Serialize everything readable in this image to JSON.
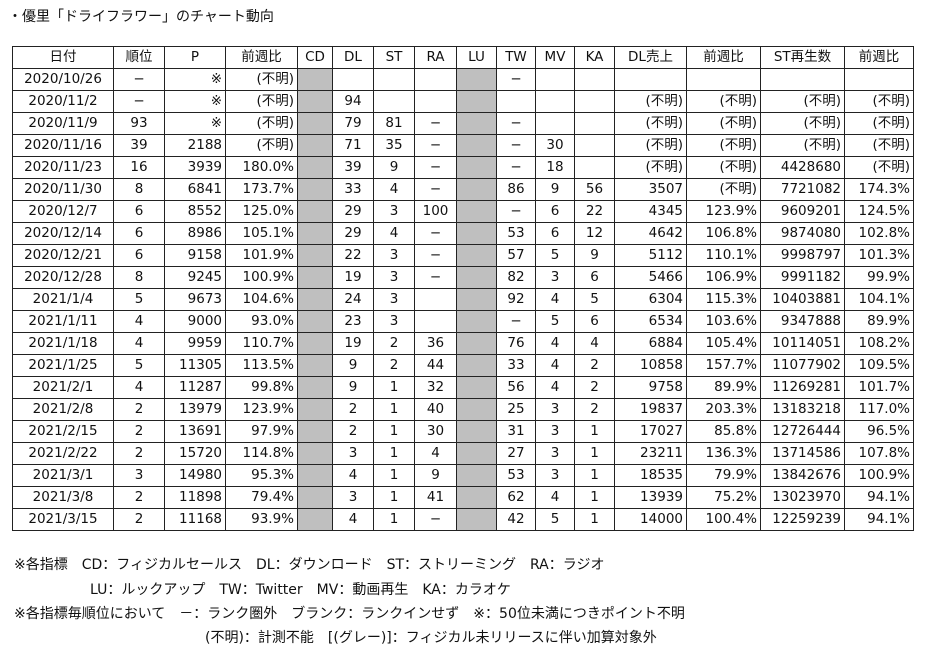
{
  "title": "・優里「ドライフラワー」のチャート動向",
  "table": {
    "header": [
      "日付",
      "順位",
      "P",
      "前週比",
      "CD",
      "DL",
      "ST",
      "RA",
      "LU",
      "TW",
      "MV",
      "KA",
      "DL売上",
      "前週比",
      "ST再生数",
      "前週比"
    ],
    "rows": [
      [
        "2020/10/26",
        "−",
        "※",
        "(不明)",
        null,
        null,
        null,
        null,
        null,
        "−",
        null,
        null,
        null,
        null,
        null,
        null
      ],
      [
        "2020/11/2",
        "−",
        "※",
        "(不明)",
        null,
        94,
        null,
        null,
        null,
        null,
        null,
        null,
        "(不明)",
        "(不明)",
        "(不明)",
        "(不明)"
      ],
      [
        "2020/11/9",
        93,
        "※",
        "(不明)",
        null,
        79,
        81,
        "−",
        null,
        "−",
        null,
        null,
        "(不明)",
        "(不明)",
        "(不明)",
        "(不明)"
      ],
      [
        "2020/11/16",
        39,
        2188,
        "(不明)",
        null,
        71,
        35,
        "−",
        null,
        "−",
        30,
        null,
        "(不明)",
        "(不明)",
        "(不明)",
        "(不明)"
      ],
      [
        "2020/11/23",
        16,
        3939,
        "180.0%",
        null,
        39,
        9,
        "−",
        null,
        "−",
        18,
        null,
        "(不明)",
        "(不明)",
        4428680,
        "(不明)"
      ],
      [
        "2020/11/30",
        8,
        6841,
        "173.7%",
        null,
        33,
        4,
        "−",
        null,
        86,
        9,
        56,
        3507,
        "(不明)",
        7721082,
        "174.3%"
      ],
      [
        "2020/12/7",
        6,
        8552,
        "125.0%",
        null,
        29,
        3,
        100,
        null,
        "−",
        6,
        22,
        4345,
        "123.9%",
        9609201,
        "124.5%"
      ],
      [
        "2020/12/14",
        6,
        8986,
        "105.1%",
        null,
        29,
        4,
        "−",
        null,
        53,
        6,
        12,
        4642,
        "106.8%",
        9874080,
        "102.8%"
      ],
      [
        "2020/12/21",
        6,
        9158,
        "101.9%",
        null,
        22,
        3,
        "−",
        null,
        57,
        5,
        9,
        5112,
        "110.1%",
        9998797,
        "101.3%"
      ],
      [
        "2020/12/28",
        8,
        9245,
        "100.9%",
        null,
        19,
        3,
        "−",
        null,
        82,
        3,
        6,
        5466,
        "106.9%",
        9991182,
        "99.9%"
      ],
      [
        "2021/1/4",
        5,
        9673,
        "104.6%",
        null,
        24,
        3,
        null,
        null,
        92,
        4,
        5,
        6304,
        "115.3%",
        10403881,
        "104.1%"
      ],
      [
        "2021/1/11",
        4,
        9000,
        "93.0%",
        null,
        23,
        3,
        null,
        null,
        "−",
        5,
        6,
        6534,
        "103.6%",
        9347888,
        "89.9%"
      ],
      [
        "2021/1/18",
        4,
        9959,
        "110.7%",
        null,
        19,
        2,
        36,
        null,
        76,
        4,
        4,
        6884,
        "105.4%",
        10114051,
        "108.2%"
      ],
      [
        "2021/1/25",
        5,
        11305,
        "113.5%",
        null,
        9,
        2,
        44,
        null,
        33,
        4,
        2,
        10858,
        "157.7%",
        11077902,
        "109.5%"
      ],
      [
        "2021/2/1",
        4,
        11287,
        "99.8%",
        null,
        9,
        1,
        32,
        null,
        56,
        4,
        2,
        9758,
        "89.9%",
        11269281,
        "101.7%"
      ],
      [
        "2021/2/8",
        2,
        13979,
        "123.9%",
        null,
        2,
        1,
        40,
        null,
        25,
        3,
        2,
        19837,
        "203.3%",
        13183218,
        "117.0%"
      ],
      [
        "2021/2/15",
        2,
        13691,
        "97.9%",
        null,
        2,
        1,
        30,
        null,
        31,
        3,
        1,
        17027,
        "85.8%",
        12726444,
        "96.5%"
      ],
      [
        "2021/2/22",
        2,
        15720,
        "114.8%",
        null,
        3,
        1,
        4,
        null,
        27,
        3,
        1,
        23211,
        "136.3%",
        13714586,
        "107.8%"
      ],
      [
        "2021/3/1",
        3,
        14980,
        "95.3%",
        null,
        4,
        1,
        9,
        null,
        53,
        3,
        1,
        18535,
        "79.9%",
        13842676,
        "100.9%"
      ],
      [
        "2021/3/8",
        2,
        11898,
        "79.4%",
        null,
        3,
        1,
        41,
        null,
        62,
        4,
        1,
        13939,
        "75.2%",
        13023970,
        "94.1%"
      ],
      [
        "2021/3/15",
        2,
        11168,
        "93.9%",
        null,
        4,
        1,
        "−",
        null,
        42,
        5,
        1,
        14000,
        "100.4%",
        12259239,
        "94.1%"
      ]
    ]
  },
  "notes": [
    "※各指標　CD：フィジカルセールス　DL：ダウンロード　ST：ストリーミング　RA：ラジオ",
    "LU：ルックアップ　TW：Twitter　MV：動画再生　KA：カラオケ",
    "※各指標毎順位において　－：ランク圏外　ブランク：ランクインせず　※：50位未満につきポイント不明",
    "(不明)：計測不能　[(グレー)]：フィジカル未リリースに伴い加算対象外"
  ]
}
